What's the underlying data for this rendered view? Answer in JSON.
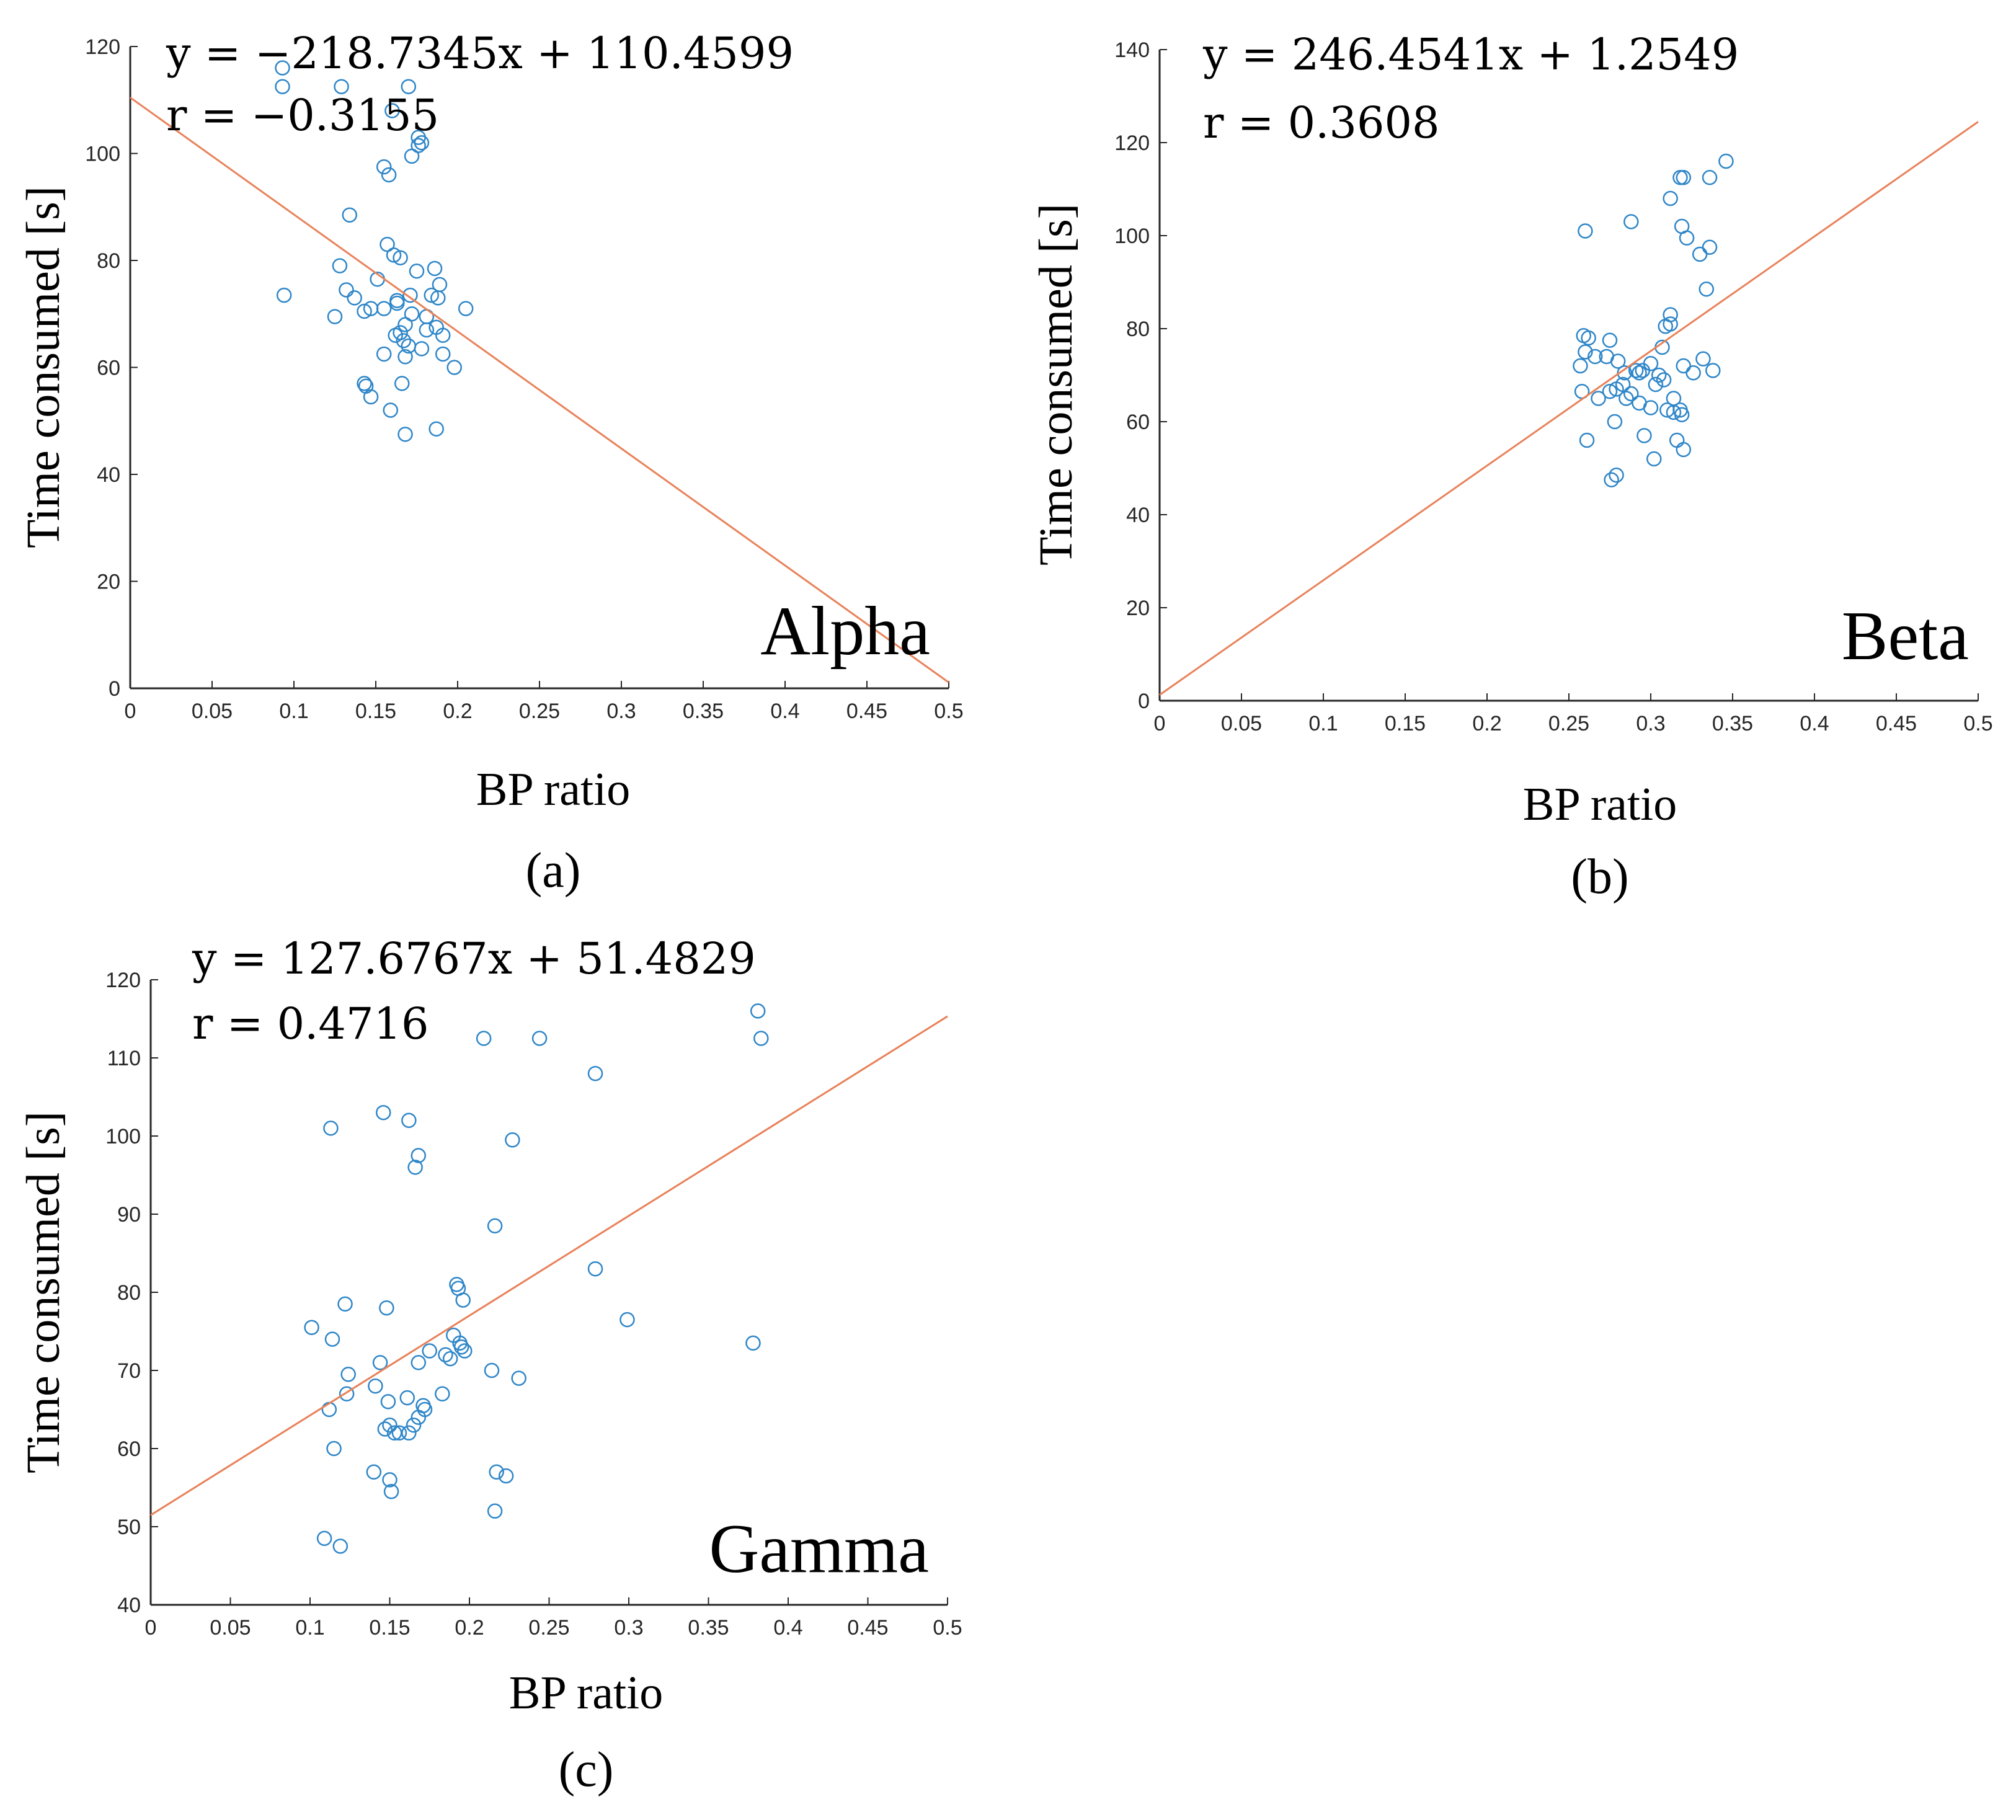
{
  "chart_data": [
    {
      "type": "scatter",
      "panel_id": "a",
      "caption": "(a)",
      "band_label": "Alpha",
      "equation": "y = −218.7345x + 110.4599",
      "r_text": "r = −0.3155",
      "fit": {
        "slope": -218.7345,
        "intercept": 110.4599
      },
      "xlabel": "BP ratio",
      "ylabel": "Time consumed [s]",
      "xlim": [
        0,
        0.5
      ],
      "ylim": [
        0,
        120
      ],
      "xticks": [
        0,
        0.05,
        0.1,
        0.15,
        0.2,
        0.25,
        0.3,
        0.35,
        0.4,
        0.45,
        0.5
      ],
      "xtick_labels": [
        "0",
        "0.05",
        "0.1",
        "0.15",
        "0.2",
        "0.25",
        "0.3",
        "0.35",
        "0.4",
        "0.45",
        "0.5"
      ],
      "yticks": [
        0,
        20,
        40,
        60,
        80,
        100,
        120
      ],
      "ytick_labels": [
        "0",
        "20",
        "40",
        "60",
        "80",
        "100",
        "120"
      ],
      "x": [
        0.093,
        0.093,
        0.129,
        0.17,
        0.16,
        0.176,
        0.176,
        0.178,
        0.172,
        0.155,
        0.158,
        0.134,
        0.157,
        0.161,
        0.165,
        0.128,
        0.175,
        0.186,
        0.189,
        0.151,
        0.094,
        0.132,
        0.137,
        0.171,
        0.184,
        0.188,
        0.143,
        0.147,
        0.155,
        0.163,
        0.163,
        0.172,
        0.181,
        0.205,
        0.125,
        0.168,
        0.181,
        0.187,
        0.162,
        0.165,
        0.167,
        0.178,
        0.17,
        0.191,
        0.155,
        0.168,
        0.198,
        0.143,
        0.166,
        0.144,
        0.147,
        0.159,
        0.168,
        0.187,
        0.191
      ],
      "y": [
        116,
        112.5,
        112.5,
        112.5,
        108,
        103,
        101.5,
        102,
        99.5,
        97.5,
        96,
        88.5,
        83,
        81,
        80.5,
        79,
        78,
        78.5,
        75.5,
        76.5,
        73.5,
        74.5,
        73,
        73.5,
        73.5,
        73,
        70.5,
        71,
        71,
        72.5,
        72,
        70,
        69.5,
        71,
        69.5,
        68,
        67,
        67.5,
        66,
        66.5,
        65,
        63.5,
        64,
        62.5,
        62.5,
        62,
        60,
        57,
        57,
        56.5,
        54.5,
        52,
        47.5,
        48.5,
        66
      ]
    },
    {
      "type": "scatter",
      "panel_id": "b",
      "caption": "(b)",
      "band_label": "Beta",
      "equation": "y = 246.4541x + 1.2549",
      "r_text": "r = 0.3608",
      "fit": {
        "slope": 246.4541,
        "intercept": 1.2549
      },
      "xlabel": "BP ratio",
      "ylabel": "Time consumed [s]",
      "xlim": [
        0,
        0.5
      ],
      "ylim": [
        0,
        140
      ],
      "xticks": [
        0,
        0.05,
        0.1,
        0.15,
        0.2,
        0.25,
        0.3,
        0.35,
        0.4,
        0.45,
        0.5
      ],
      "xtick_labels": [
        "0",
        "0.05",
        "0.1",
        "0.15",
        "0.2",
        "0.25",
        "0.3",
        "0.35",
        "0.4",
        "0.45",
        "0.5"
      ],
      "yticks": [
        0,
        20,
        40,
        60,
        80,
        100,
        120,
        140
      ],
      "ytick_labels": [
        "0",
        "20",
        "40",
        "60",
        "80",
        "100",
        "120",
        "140"
      ],
      "x": [
        0.346,
        0.318,
        0.32,
        0.336,
        0.312,
        0.319,
        0.26,
        0.288,
        0.322,
        0.336,
        0.33,
        0.334,
        0.312,
        0.312,
        0.309,
        0.259,
        0.262,
        0.275,
        0.26,
        0.266,
        0.273,
        0.28,
        0.3,
        0.307,
        0.257,
        0.291,
        0.284,
        0.295,
        0.293,
        0.305,
        0.303,
        0.308,
        0.32,
        0.332,
        0.338,
        0.326,
        0.275,
        0.279,
        0.283,
        0.268,
        0.285,
        0.258,
        0.288,
        0.293,
        0.3,
        0.31,
        0.314,
        0.318,
        0.319,
        0.314,
        0.261,
        0.302,
        0.278,
        0.296,
        0.316,
        0.32,
        0.276,
        0.279
      ],
      "y": [
        116,
        112.5,
        112.5,
        112.5,
        108,
        102,
        101,
        103,
        99.5,
        97.5,
        96,
        88.5,
        83,
        81,
        80.5,
        78.5,
        78,
        77.5,
        75,
        74,
        74,
        73,
        72.5,
        76,
        72,
        71,
        70.5,
        71,
        70.5,
        70,
        68,
        69,
        72,
        73.5,
        71,
        70.5,
        66.5,
        67,
        68,
        65,
        65,
        66.5,
        66,
        64,
        63,
        62.5,
        62,
        62.5,
        61.5,
        65,
        56,
        52,
        60,
        57,
        56,
        54,
        47.5,
        48.5
      ]
    },
    {
      "type": "scatter",
      "panel_id": "c",
      "caption": "(c)",
      "band_label": "Gamma",
      "equation": "y = 127.6767x + 51.4829",
      "r_text": "r = 0.4716",
      "fit": {
        "slope": 127.6767,
        "intercept": 51.4829
      },
      "xlabel": "BP ratio",
      "ylabel": "Time consumed [s]",
      "xlim": [
        0,
        0.5
      ],
      "ylim": [
        40,
        120
      ],
      "xticks": [
        0,
        0.05,
        0.1,
        0.15,
        0.2,
        0.25,
        0.3,
        0.35,
        0.4,
        0.45,
        0.5
      ],
      "xtick_labels": [
        "0",
        "0.05",
        "0.1",
        "0.15",
        "0.2",
        "0.25",
        "0.3",
        "0.35",
        "0.4",
        "0.45",
        "0.5"
      ],
      "yticks": [
        40,
        50,
        60,
        70,
        80,
        90,
        100,
        110,
        120
      ],
      "ytick_labels": [
        "40",
        "50",
        "60",
        "70",
        "80",
        "90",
        "100",
        "110",
        "120"
      ],
      "x": [
        0.381,
        0.383,
        0.209,
        0.244,
        0.279,
        0.146,
        0.113,
        0.162,
        0.168,
        0.166,
        0.227,
        0.216,
        0.279,
        0.192,
        0.193,
        0.196,
        0.122,
        0.148,
        0.299,
        0.101,
        0.114,
        0.378,
        0.19,
        0.194,
        0.195,
        0.197,
        0.175,
        0.185,
        0.168,
        0.188,
        0.144,
        0.214,
        0.231,
        0.141,
        0.123,
        0.149,
        0.161,
        0.171,
        0.172,
        0.112,
        0.168,
        0.15,
        0.156,
        0.147,
        0.153,
        0.165,
        0.162,
        0.115,
        0.14,
        0.15,
        0.223,
        0.217,
        0.151,
        0.216,
        0.109,
        0.119,
        0.183,
        0.124
      ],
      "y": [
        116,
        112.5,
        112.5,
        112.5,
        108,
        103,
        101,
        102,
        97.5,
        96,
        99.5,
        88.5,
        83,
        81,
        80.5,
        79,
        78.5,
        78,
        76.5,
        75.5,
        74,
        73.5,
        74.5,
        73.5,
        73,
        72.5,
        72.5,
        72,
        71,
        71.5,
        71,
        70,
        69,
        68,
        67,
        66,
        66.5,
        65.5,
        65,
        65,
        64,
        63,
        62,
        62.5,
        62,
        63,
        62,
        60,
        57,
        56,
        56.5,
        57,
        54.5,
        52,
        48.5,
        47.5,
        67,
        69.5
      ]
    }
  ]
}
